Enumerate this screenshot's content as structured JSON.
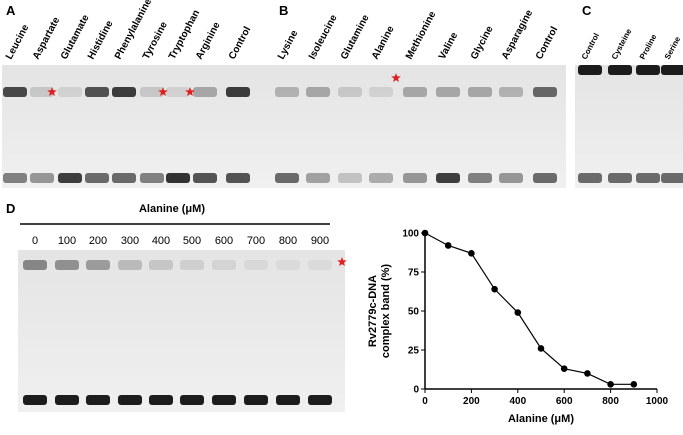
{
  "panels": [
    {
      "letter": "A",
      "lanes": [
        "Leucine",
        "Aspartate",
        "Glutamate",
        "Histidine",
        "Phenylalanine",
        "Tyrosine",
        "Tryptophan",
        "Arginine",
        "Control"
      ]
    },
    {
      "letter": "B",
      "lanes": [
        "Lysine",
        "Isoleucine",
        "Glutamine",
        "Alanine",
        "Methionine",
        "Valine",
        "Glycine",
        "Asparagine",
        "Control"
      ]
    },
    {
      "letter": "C",
      "lanes": [
        "Control",
        "Cysteine",
        "Proline",
        "Serine"
      ]
    },
    {
      "letter": "D",
      "header": "Alanine (μM)",
      "lanes": [
        "0",
        "100",
        "200",
        "300",
        "400",
        "500",
        "600",
        "700",
        "800",
        "900"
      ]
    }
  ],
  "chart_data": {
    "type": "line",
    "x_label": "Alanine (μM)",
    "y_label": [
      "Rv2779c-DNA",
      "complex band (%)"
    ],
    "x": [
      0,
      100,
      200,
      300,
      400,
      500,
      600,
      700,
      800,
      900
    ],
    "values": [
      100,
      92,
      87,
      64,
      49,
      26,
      13,
      10,
      3,
      3
    ],
    "color": "#000000",
    "xlim": [
      0,
      1000
    ],
    "xticks": [
      0,
      200,
      400,
      600,
      800,
      1000
    ],
    "ylim": [
      0,
      100
    ],
    "yticks": [
      0,
      25,
      50,
      75,
      100
    ]
  }
}
